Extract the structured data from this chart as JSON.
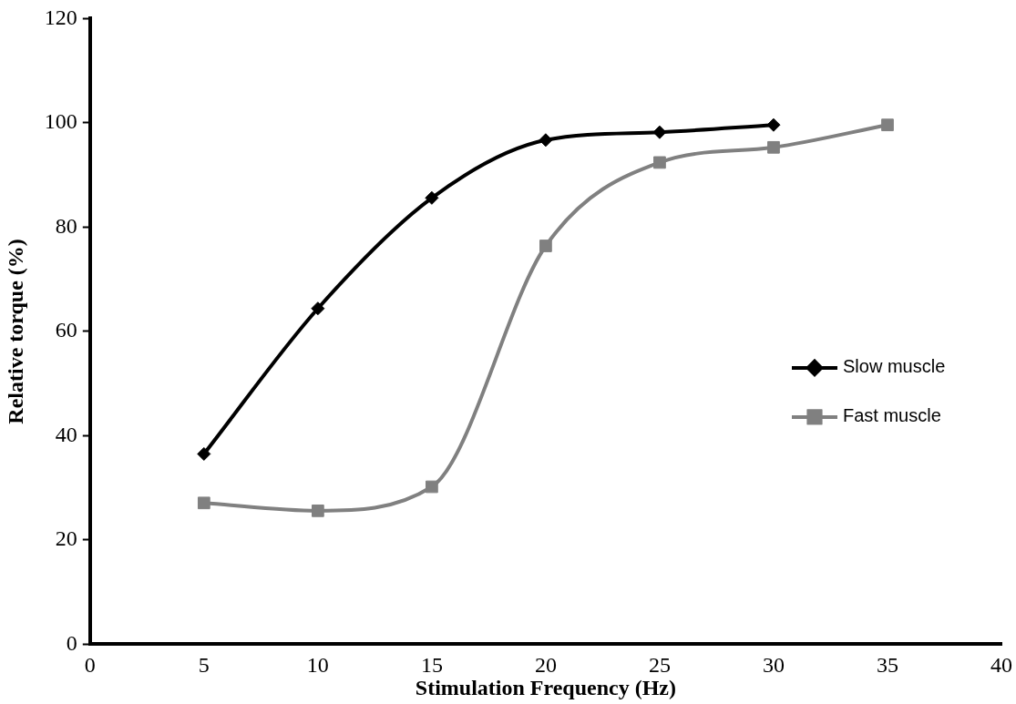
{
  "chart_data": {
    "type": "line",
    "xlabel": "Stimulation Frequency (Hz)",
    "ylabel": "Relative torque (%)",
    "xlim": [
      0,
      40
    ],
    "xticks": [
      0,
      5,
      10,
      15,
      20,
      25,
      30,
      35,
      40
    ],
    "ylim": [
      0,
      120
    ],
    "yticks": [
      0,
      20,
      40,
      60,
      80,
      100,
      120
    ],
    "grid": false,
    "legend": "right",
    "line_style": "solid",
    "series": [
      {
        "name": "Slow muscle",
        "color": "#000000",
        "marker": "diamond",
        "x": [
          5,
          10,
          15,
          20,
          25,
          30
        ],
        "values": [
          36.5,
          64.4,
          85.6,
          96.7,
          98.2,
          99.6
        ]
      },
      {
        "name": "Fast muscle",
        "color": "#808080",
        "marker": "square",
        "x": [
          5,
          10,
          15,
          20,
          25,
          30,
          35
        ],
        "values": [
          27.1,
          25.6,
          30.2,
          76.4,
          92.4,
          95.3,
          99.6
        ]
      }
    ]
  }
}
